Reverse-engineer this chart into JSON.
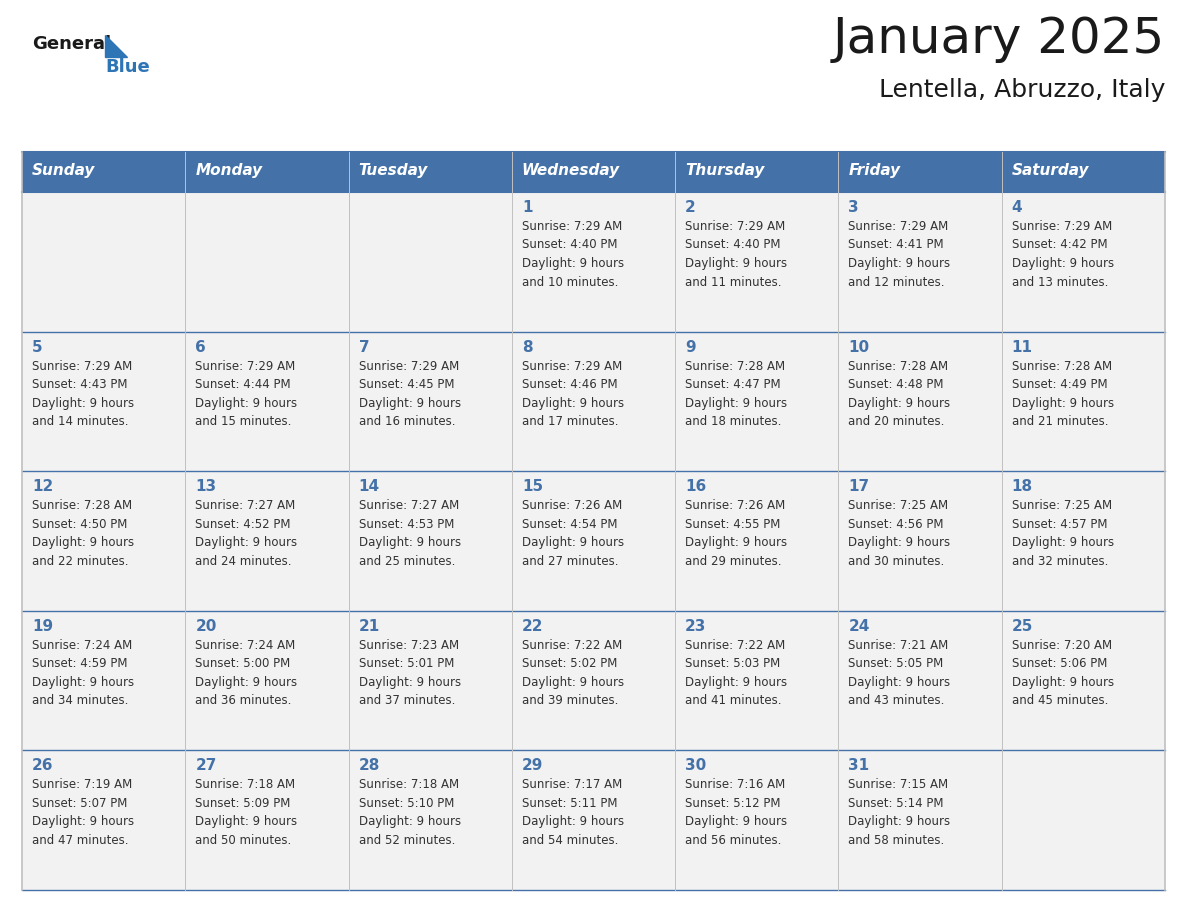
{
  "title": "January 2025",
  "subtitle": "Lentella, Abruzzo, Italy",
  "days_of_week": [
    "Sunday",
    "Monday",
    "Tuesday",
    "Wednesday",
    "Thursday",
    "Friday",
    "Saturday"
  ],
  "header_bg": "#4472a8",
  "header_text": "#ffffff",
  "row_bg": "#f2f2f2",
  "cell_text": "#333333",
  "day_num_color": "#4472a8",
  "row_divider_color": "#4472a8",
  "col_divider_color": "#c0c0c0",
  "title_color": "#1a1a1a",
  "subtitle_color": "#1a1a1a",
  "logo_general_color": "#1a1a1a",
  "logo_blue_color": "#2e75b6",
  "weeks": [
    [
      {
        "day": "",
        "info": ""
      },
      {
        "day": "",
        "info": ""
      },
      {
        "day": "",
        "info": ""
      },
      {
        "day": "1",
        "info": "Sunrise: 7:29 AM\nSunset: 4:40 PM\nDaylight: 9 hours\nand 10 minutes."
      },
      {
        "day": "2",
        "info": "Sunrise: 7:29 AM\nSunset: 4:40 PM\nDaylight: 9 hours\nand 11 minutes."
      },
      {
        "day": "3",
        "info": "Sunrise: 7:29 AM\nSunset: 4:41 PM\nDaylight: 9 hours\nand 12 minutes."
      },
      {
        "day": "4",
        "info": "Sunrise: 7:29 AM\nSunset: 4:42 PM\nDaylight: 9 hours\nand 13 minutes."
      }
    ],
    [
      {
        "day": "5",
        "info": "Sunrise: 7:29 AM\nSunset: 4:43 PM\nDaylight: 9 hours\nand 14 minutes."
      },
      {
        "day": "6",
        "info": "Sunrise: 7:29 AM\nSunset: 4:44 PM\nDaylight: 9 hours\nand 15 minutes."
      },
      {
        "day": "7",
        "info": "Sunrise: 7:29 AM\nSunset: 4:45 PM\nDaylight: 9 hours\nand 16 minutes."
      },
      {
        "day": "8",
        "info": "Sunrise: 7:29 AM\nSunset: 4:46 PM\nDaylight: 9 hours\nand 17 minutes."
      },
      {
        "day": "9",
        "info": "Sunrise: 7:28 AM\nSunset: 4:47 PM\nDaylight: 9 hours\nand 18 minutes."
      },
      {
        "day": "10",
        "info": "Sunrise: 7:28 AM\nSunset: 4:48 PM\nDaylight: 9 hours\nand 20 minutes."
      },
      {
        "day": "11",
        "info": "Sunrise: 7:28 AM\nSunset: 4:49 PM\nDaylight: 9 hours\nand 21 minutes."
      }
    ],
    [
      {
        "day": "12",
        "info": "Sunrise: 7:28 AM\nSunset: 4:50 PM\nDaylight: 9 hours\nand 22 minutes."
      },
      {
        "day": "13",
        "info": "Sunrise: 7:27 AM\nSunset: 4:52 PM\nDaylight: 9 hours\nand 24 minutes."
      },
      {
        "day": "14",
        "info": "Sunrise: 7:27 AM\nSunset: 4:53 PM\nDaylight: 9 hours\nand 25 minutes."
      },
      {
        "day": "15",
        "info": "Sunrise: 7:26 AM\nSunset: 4:54 PM\nDaylight: 9 hours\nand 27 minutes."
      },
      {
        "day": "16",
        "info": "Sunrise: 7:26 AM\nSunset: 4:55 PM\nDaylight: 9 hours\nand 29 minutes."
      },
      {
        "day": "17",
        "info": "Sunrise: 7:25 AM\nSunset: 4:56 PM\nDaylight: 9 hours\nand 30 minutes."
      },
      {
        "day": "18",
        "info": "Sunrise: 7:25 AM\nSunset: 4:57 PM\nDaylight: 9 hours\nand 32 minutes."
      }
    ],
    [
      {
        "day": "19",
        "info": "Sunrise: 7:24 AM\nSunset: 4:59 PM\nDaylight: 9 hours\nand 34 minutes."
      },
      {
        "day": "20",
        "info": "Sunrise: 7:24 AM\nSunset: 5:00 PM\nDaylight: 9 hours\nand 36 minutes."
      },
      {
        "day": "21",
        "info": "Sunrise: 7:23 AM\nSunset: 5:01 PM\nDaylight: 9 hours\nand 37 minutes."
      },
      {
        "day": "22",
        "info": "Sunrise: 7:22 AM\nSunset: 5:02 PM\nDaylight: 9 hours\nand 39 minutes."
      },
      {
        "day": "23",
        "info": "Sunrise: 7:22 AM\nSunset: 5:03 PM\nDaylight: 9 hours\nand 41 minutes."
      },
      {
        "day": "24",
        "info": "Sunrise: 7:21 AM\nSunset: 5:05 PM\nDaylight: 9 hours\nand 43 minutes."
      },
      {
        "day": "25",
        "info": "Sunrise: 7:20 AM\nSunset: 5:06 PM\nDaylight: 9 hours\nand 45 minutes."
      }
    ],
    [
      {
        "day": "26",
        "info": "Sunrise: 7:19 AM\nSunset: 5:07 PM\nDaylight: 9 hours\nand 47 minutes."
      },
      {
        "day": "27",
        "info": "Sunrise: 7:18 AM\nSunset: 5:09 PM\nDaylight: 9 hours\nand 50 minutes."
      },
      {
        "day": "28",
        "info": "Sunrise: 7:18 AM\nSunset: 5:10 PM\nDaylight: 9 hours\nand 52 minutes."
      },
      {
        "day": "29",
        "info": "Sunrise: 7:17 AM\nSunset: 5:11 PM\nDaylight: 9 hours\nand 54 minutes."
      },
      {
        "day": "30",
        "info": "Sunrise: 7:16 AM\nSunset: 5:12 PM\nDaylight: 9 hours\nand 56 minutes."
      },
      {
        "day": "31",
        "info": "Sunrise: 7:15 AM\nSunset: 5:14 PM\nDaylight: 9 hours\nand 58 minutes."
      },
      {
        "day": "",
        "info": ""
      }
    ]
  ]
}
